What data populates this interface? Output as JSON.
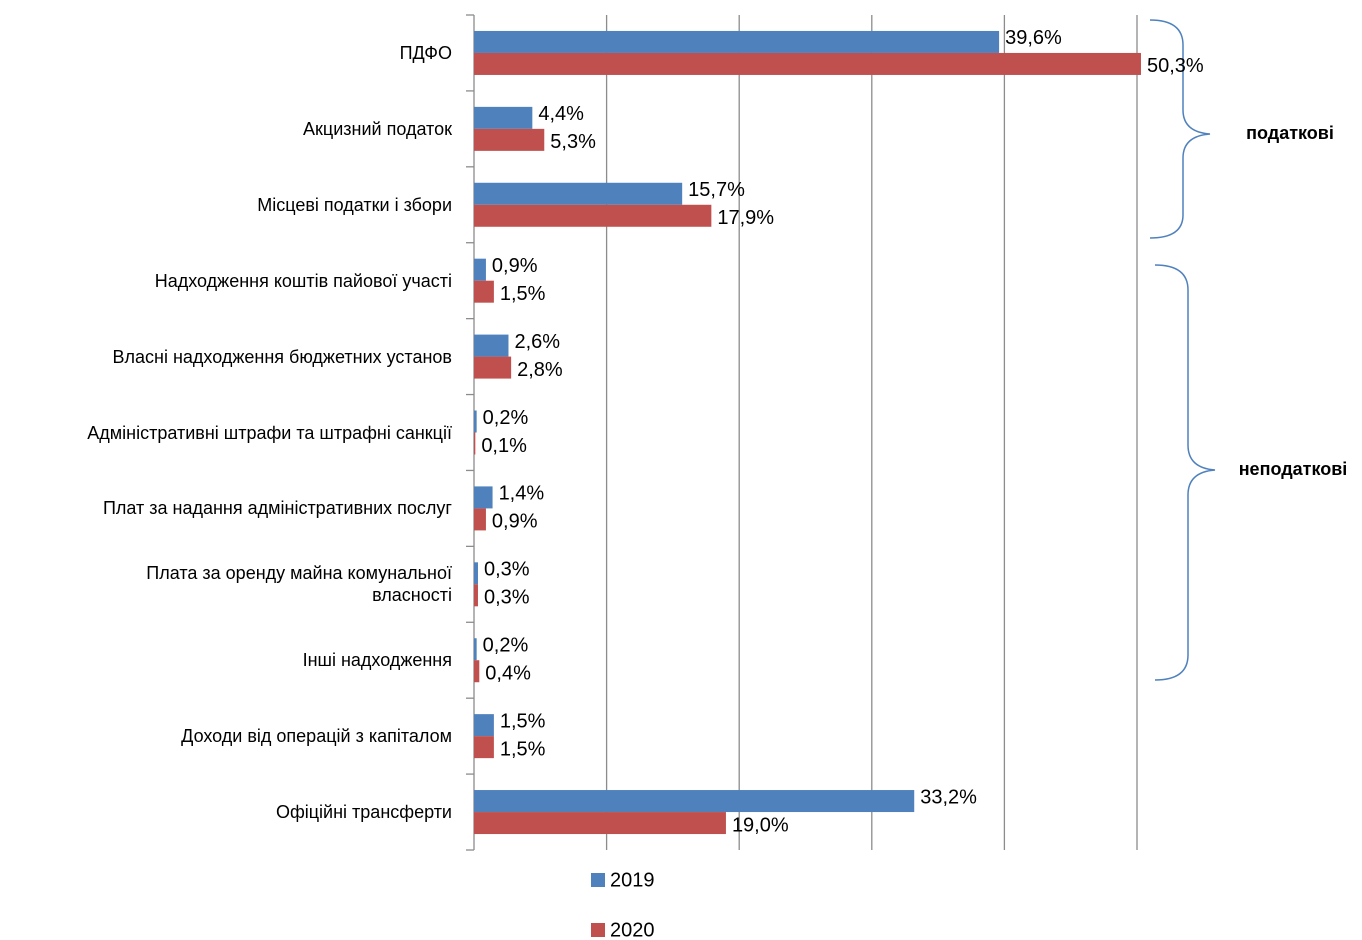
{
  "chart_data": {
    "type": "bar",
    "orientation": "horizontal",
    "categories": [
      "ПДФО",
      "Акцизний податок",
      "Місцеві податки і збори",
      "Надходження коштів пайової участі",
      "Власні надходження бюджетних установ",
      "Адміністративні штрафи та штрафні санкції",
      "Плат за надання адміністративних послуг",
      "Плата за оренду майна комунальної\nвласності",
      "Інші надходження",
      "Доходи від операцій з капіталом",
      "Офіційні трансферти"
    ],
    "series": [
      {
        "name": "2019",
        "color": "#4f81bd",
        "values": [
          39.6,
          4.4,
          15.7,
          0.9,
          2.6,
          0.2,
          1.4,
          0.3,
          0.2,
          1.5,
          33.2
        ],
        "value_labels": [
          "39,6%",
          "4,4%",
          "15,7%",
          "0,9%",
          "2,6%",
          "0,2%",
          "1,4%",
          "0,3%",
          "0,2%",
          "1,5%",
          "33,2%"
        ]
      },
      {
        "name": "2020",
        "color": "#c0504d",
        "values": [
          50.3,
          5.3,
          17.9,
          1.5,
          2.8,
          0.1,
          0.9,
          0.3,
          0.4,
          1.5,
          19.0
        ],
        "value_labels": [
          "50,3%",
          "5,3%",
          "17,9%",
          "1,5%",
          "2,8%",
          "0,1%",
          "0,9%",
          "0,3%",
          "0,4%",
          "1,5%",
          "19,0%"
        ]
      }
    ],
    "xlim": [
      0,
      50
    ],
    "xticks": [
      0,
      10,
      20,
      30,
      40,
      50
    ],
    "grid": true,
    "legend": "bottom",
    "annotations": [
      "податкові",
      "неподаткові"
    ]
  }
}
